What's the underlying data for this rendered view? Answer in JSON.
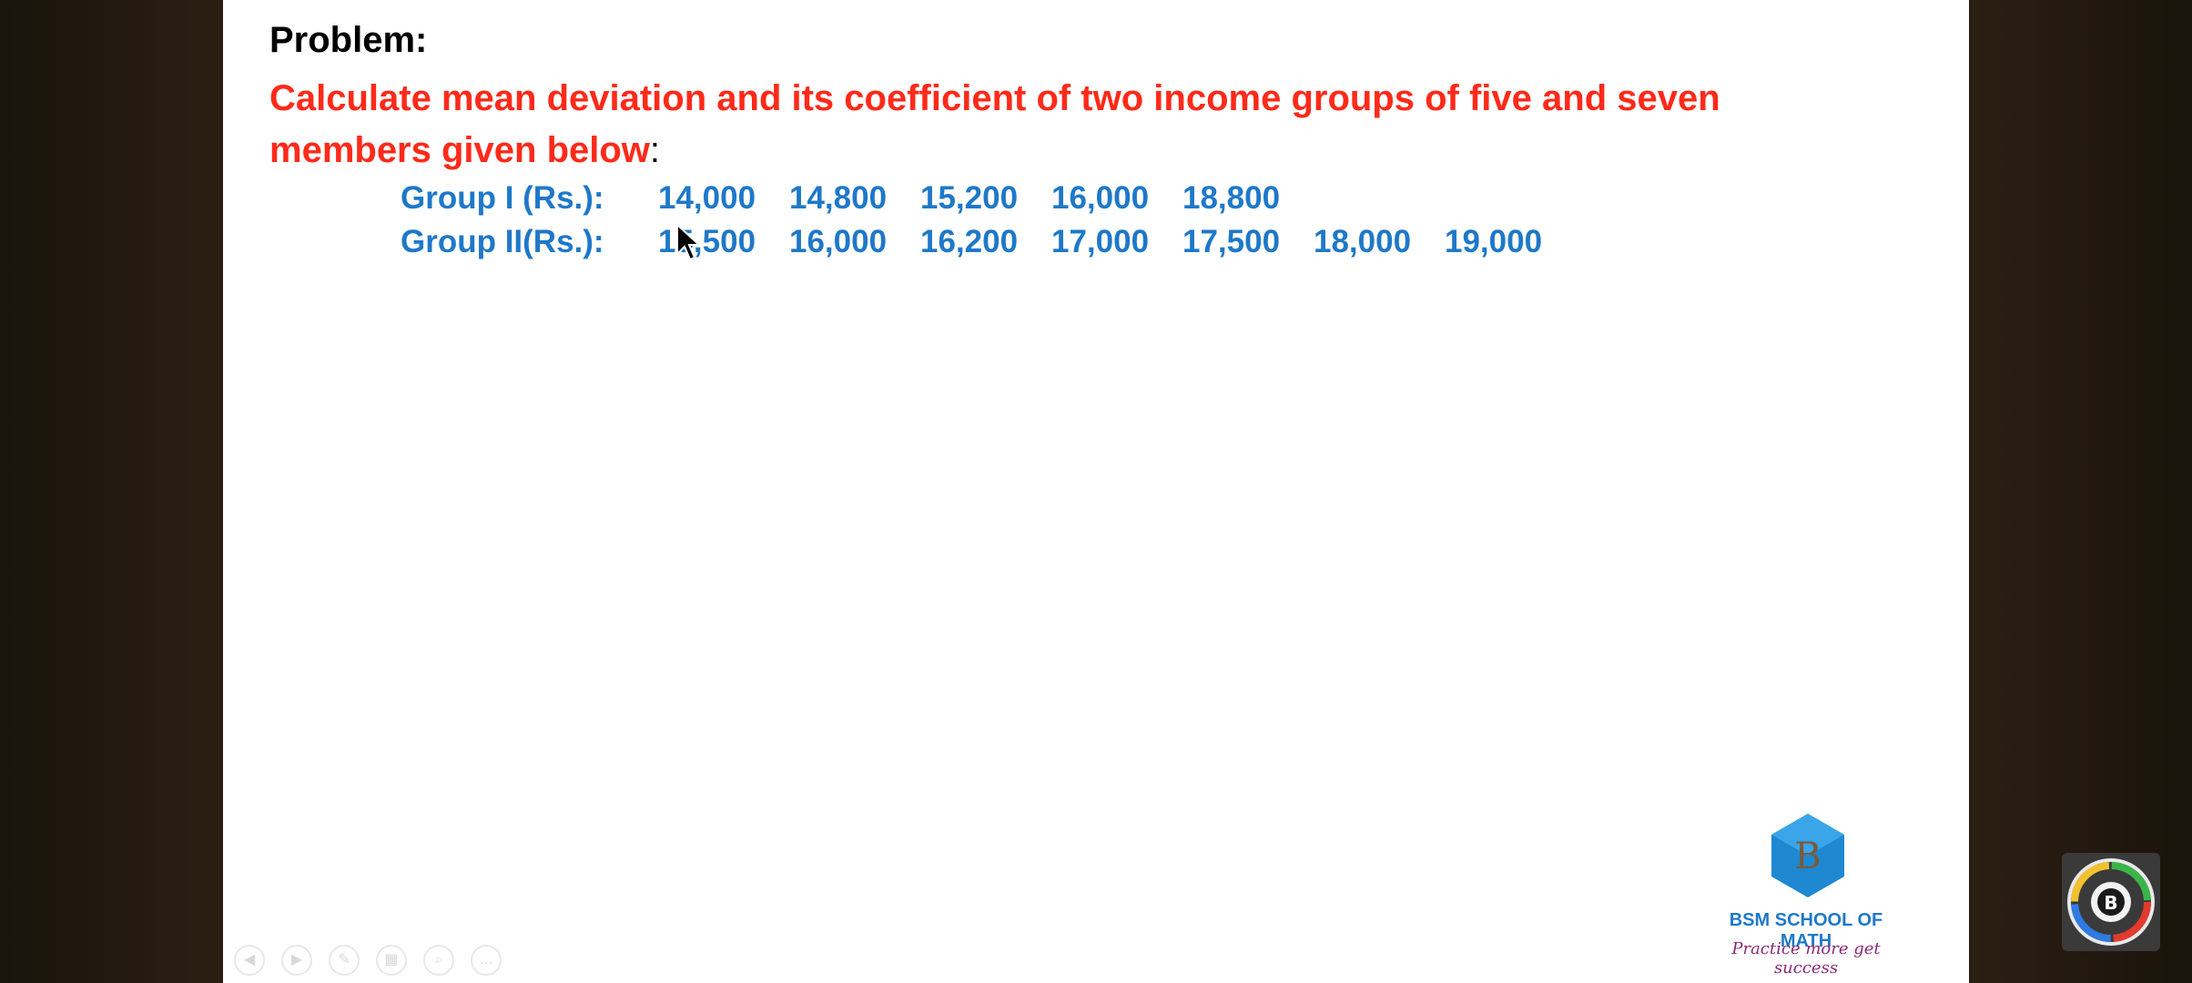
{
  "slide": {
    "heading": "Problem:",
    "statement": "Calculate mean deviation and its coefficient of two income groups of five and seven members given below",
    "statement_colon": ":",
    "groups": [
      {
        "label": "Group I (Rs.):",
        "values": [
          "14,000",
          "14,800",
          "15,200",
          "16,000",
          "18,800"
        ]
      },
      {
        "label": "Group II(Rs.):",
        "values": [
          "15,500",
          "16,000",
          "16,200",
          "17,000",
          "17,500",
          "18,000",
          "19,000"
        ]
      }
    ]
  },
  "logo": {
    "letter": "B",
    "brand": "BSM SCHOOL OF MATH",
    "tagline": "Practice more get success"
  },
  "toolbar": {
    "icons": [
      "previous-icon",
      "next-icon",
      "pen-icon",
      "slides-icon",
      "zoom-icon",
      "more-icon"
    ]
  },
  "colors": {
    "statement": "#ff2a1a",
    "groups": "#1f78c8",
    "tagline": "#8b2a7a"
  }
}
